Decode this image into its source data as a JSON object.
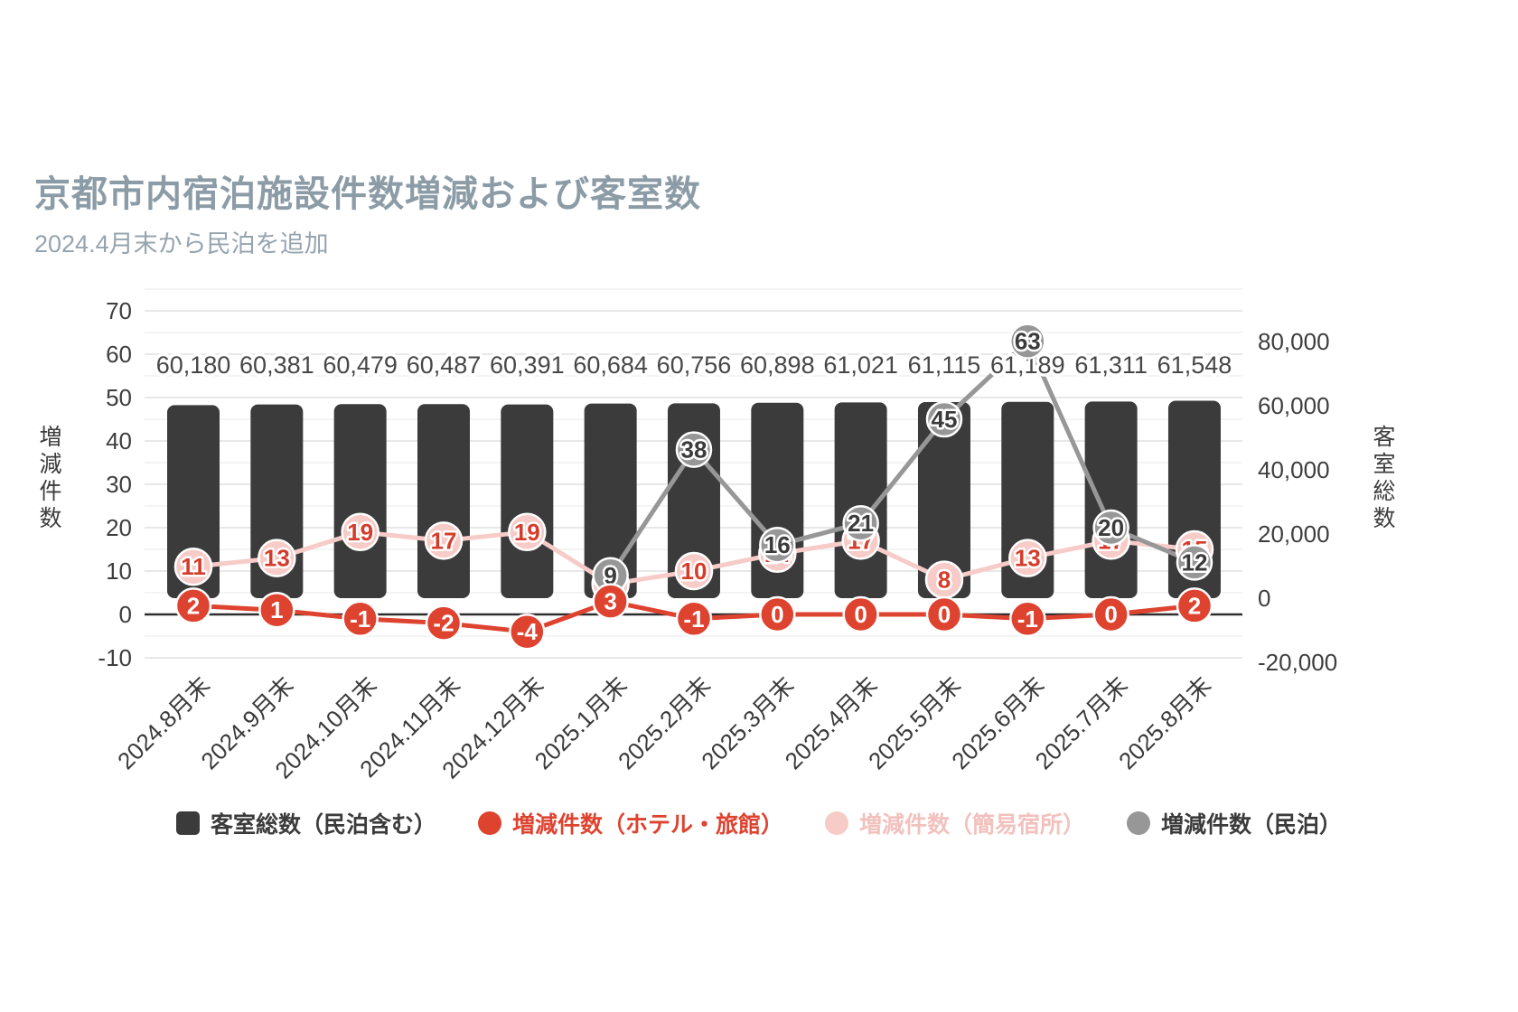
{
  "header": {
    "title": "京都市内宿泊施設件数増減および客室数",
    "subtitle": "2024.4月末から民泊を追加"
  },
  "chart_data": {
    "type": "combo-bar-line",
    "title": "京都市内宿泊施設件数増減および客室数",
    "subtitle": "2024.4月末から民泊を追加",
    "categories": [
      "2024.8月末",
      "2024.9月末",
      "2024.10月末",
      "2024.11月末",
      "2024.12月末",
      "2025.1月末",
      "2025.2月末",
      "2025.3月末",
      "2025.4月末",
      "2025.5月末",
      "2025.6月末",
      "2025.7月末",
      "2025.8月末"
    ],
    "series": [
      {
        "name": "客室総数（民泊含む）",
        "type": "bar",
        "axis": "right",
        "color": "#3b3b3b",
        "legend_text_color": "#3b3b3b",
        "values": [
          60180,
          60381,
          60479,
          60487,
          60391,
          60684,
          60756,
          60898,
          61021,
          61115,
          61189,
          61311,
          61548
        ]
      },
      {
        "name": "増減件数（ホテル・旅館）",
        "type": "line",
        "axis": "left",
        "color": "#de4330",
        "label_color": "#ffffff",
        "legend_text_color": "#de4330",
        "values": [
          2,
          1,
          -1,
          -2,
          -4,
          3,
          -1,
          0,
          0,
          0,
          -1,
          0,
          2
        ]
      },
      {
        "name": "増減件数（簡易宿所）",
        "type": "line",
        "axis": "left",
        "color": "#f6cbc8",
        "label_color": "#d63c2b",
        "legend_text_color": "#f2c1be",
        "values": [
          11,
          13,
          19,
          17,
          19,
          7,
          10,
          14,
          17,
          8,
          13,
          17,
          15
        ]
      },
      {
        "name": "増減件数（民泊）",
        "type": "line",
        "axis": "left",
        "color": "#979797",
        "label_color": "#3b3b3b",
        "legend_text_color": "#3b3b3b",
        "values": [
          null,
          null,
          null,
          null,
          null,
          9,
          38,
          16,
          21,
          45,
          63,
          20,
          12
        ]
      }
    ],
    "left_axis": {
      "title": "増減件数",
      "min": -10,
      "max": 70,
      "tick_step": 10,
      "ticks": [
        70,
        60,
        50,
        40,
        30,
        20,
        10,
        0,
        -10
      ]
    },
    "right_axis": {
      "title": "客室総数",
      "min": -20000,
      "max": 80000,
      "tick_step": 20000,
      "ticks": [
        80000,
        60000,
        40000,
        20000,
        0,
        -20000
      ]
    },
    "grid": true,
    "legend_position": "bottom"
  }
}
